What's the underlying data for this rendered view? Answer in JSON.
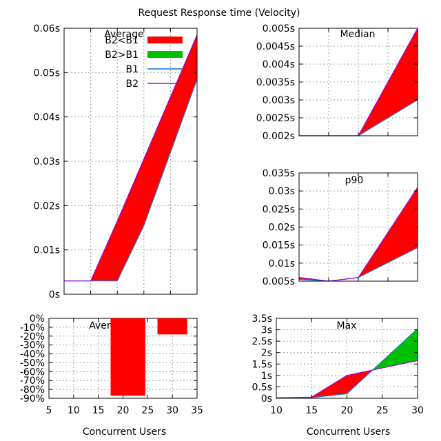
{
  "title": "Request Response time (Velocity)",
  "legend": {
    "entries": [
      {
        "label": "B2<B1",
        "color": "#ff0000",
        "kind": "fill"
      },
      {
        "label": "B2>B1",
        "color": "#00c000",
        "kind": "fill"
      },
      {
        "label": "B1",
        "color": "#0072d0",
        "kind": "line"
      },
      {
        "label": "B2",
        "color": "#a000e0",
        "kind": "line"
      }
    ]
  },
  "colors": {
    "b2_lt_b1": "#ff0000",
    "b2_gt_b1": "#00c000",
    "b1": "#1e78d2",
    "b2": "#a000e0",
    "grid": "#a0a0a0"
  },
  "chart_data": [
    {
      "id": "average",
      "type": "area",
      "title": "Average",
      "xlabel": "",
      "ylabel": "",
      "x": [
        10,
        15,
        20,
        25,
        30,
        35
      ],
      "series": [
        {
          "name": "B1",
          "values": [
            0.003,
            0.003,
            0.003,
            0.0155,
            0.032,
            0.0485
          ]
        },
        {
          "name": "B2",
          "values": [
            0.003,
            0.003,
            0.0165,
            0.0305,
            0.0445,
            0.0585
          ]
        }
      ],
      "xlim": [
        10,
        35
      ],
      "ylim": [
        0,
        0.06
      ],
      "xticks": [
        10,
        15,
        20,
        25,
        30,
        35
      ],
      "yticks": [
        0,
        0.01,
        0.02,
        0.03,
        0.04,
        0.05,
        0.06
      ],
      "yticklabels": [
        "0s",
        "0.01s",
        "0.02s",
        "0.03s",
        "0.04s",
        "0.05s",
        "0.06s"
      ],
      "grid": true,
      "legend": "top-right"
    },
    {
      "id": "median",
      "type": "area",
      "title": "Median",
      "x": [
        10,
        15,
        20,
        30
      ],
      "series": [
        {
          "name": "B1",
          "values": [
            0.002,
            0.002,
            0.002,
            0.003
          ]
        },
        {
          "name": "B2",
          "values": [
            0.002,
            0.002,
            0.002,
            0.005
          ]
        }
      ],
      "xlim": [
        10,
        30
      ],
      "ylim": [
        0.002,
        0.005
      ],
      "xticks": [
        10,
        15,
        20,
        25,
        30
      ],
      "yticks": [
        0.002,
        0.0025,
        0.003,
        0.0035,
        0.004,
        0.0045,
        0.005
      ],
      "yticklabels": [
        "0.002s",
        "0.0025s",
        "0.003s",
        "0.0035s",
        "0.004s",
        "0.0045s",
        "0.005s"
      ],
      "grid": true
    },
    {
      "id": "p90",
      "type": "area",
      "title": "p90",
      "x": [
        10,
        15,
        20,
        30
      ],
      "series": [
        {
          "name": "B1",
          "values": [
            0.0055,
            0.005,
            0.006,
            0.0143
          ]
        },
        {
          "name": "B2",
          "values": [
            0.006,
            0.005,
            0.006,
            0.031
          ]
        }
      ],
      "xlim": [
        10,
        30
      ],
      "ylim": [
        0.005,
        0.035
      ],
      "xticks": [
        10,
        15,
        20,
        25,
        30
      ],
      "yticks": [
        0.005,
        0.01,
        0.015,
        0.02,
        0.025,
        0.03,
        0.035
      ],
      "yticklabels": [
        "0.005s",
        "0.01s",
        "0.015s",
        "0.02s",
        "0.025s",
        "0.03s",
        "0.035s"
      ],
      "grid": true
    },
    {
      "id": "average-diff",
      "type": "bar",
      "title": "Average",
      "categories": [
        21,
        30
      ],
      "bar_width": [
        7,
        6
      ],
      "values": [
        -87,
        -18
      ],
      "xlim": [
        5,
        35
      ],
      "ylim": [
        -90,
        0
      ],
      "xticks": [
        5,
        10,
        15,
        20,
        25,
        30,
        35
      ],
      "xticklabels": [
        "5",
        "10",
        "15",
        "20",
        "25",
        "30",
        "35"
      ],
      "yticks": [
        0,
        -10,
        -20,
        -30,
        -40,
        -50,
        -60,
        -70,
        -80,
        -90
      ],
      "yticklabels": [
        "0%",
        "-10%",
        "-20%",
        "-30%",
        "-40%",
        "-50%",
        "-60%",
        "-70%",
        "-80%",
        "-90%"
      ],
      "xlabel": "Concurrent Users",
      "grid": true
    },
    {
      "id": "max",
      "type": "area",
      "title": "Max",
      "x": [
        10,
        15,
        20,
        30
      ],
      "series": [
        {
          "name": "B1",
          "values": [
            0.02,
            0.03,
            0.2,
            3.05
          ]
        },
        {
          "name": "B2",
          "values": [
            0.02,
            0.05,
            1.0,
            1.65
          ]
        }
      ],
      "xlim": [
        10,
        30
      ],
      "ylim": [
        0,
        3.5
      ],
      "xticks": [
        10,
        15,
        20,
        25,
        30
      ],
      "xticklabels": [
        "10",
        "15",
        "20",
        "25",
        "30"
      ],
      "yticks": [
        0,
        0.5,
        1,
        1.5,
        2,
        2.5,
        3,
        3.5
      ],
      "yticklabels": [
        "0s",
        "0.5s",
        "1s",
        "1.5s",
        "2s",
        "2.5s",
        "3s",
        "3.5s"
      ],
      "xlabel": "Concurrent Users",
      "grid": true
    }
  ]
}
